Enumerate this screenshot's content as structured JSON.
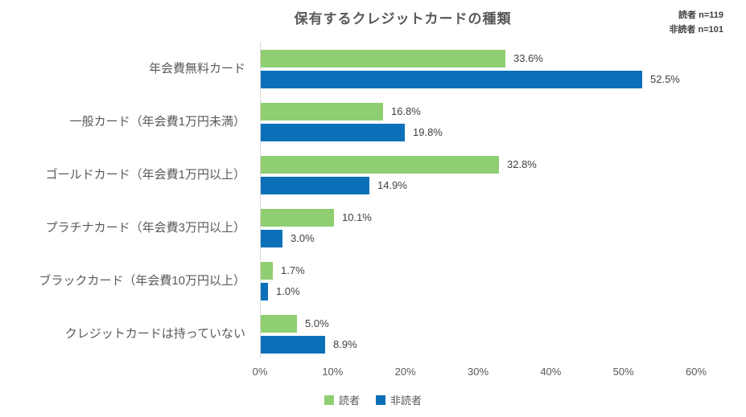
{
  "chart": {
    "title": "保有するクレジットカードの種類",
    "n_labels": [
      "読者 n=119",
      "非読者 n=101"
    ]
  },
  "chart_data": {
    "type": "bar",
    "orientation": "horizontal",
    "title": "保有するクレジットカードの種類",
    "categories": [
      "年会費無料カード",
      "一般カード（年会費1万円未満）",
      "ゴールドカード（年会費1万円以上）",
      "プラチナカード（年会費3万円以上）",
      "ブラックカード（年会費10万円以上）",
      "クレジットカードは持っていない"
    ],
    "series": [
      {
        "name": "読者",
        "color": "#8fce71",
        "values": [
          33.6,
          16.8,
          32.8,
          10.1,
          1.7,
          5.0
        ]
      },
      {
        "name": "非読者",
        "color": "#0b70b8",
        "values": [
          52.5,
          19.8,
          14.9,
          3.0,
          1.0,
          8.9
        ]
      }
    ],
    "value_suffix": "%",
    "xlabel": "",
    "ylabel": "",
    "xlim": [
      0,
      60
    ],
    "x_ticks": [
      "0%",
      "10%",
      "20%",
      "30%",
      "40%",
      "50%",
      "60%"
    ],
    "grid": false,
    "legend_position": "bottom",
    "axis_line_color": "#d9d9d9"
  }
}
